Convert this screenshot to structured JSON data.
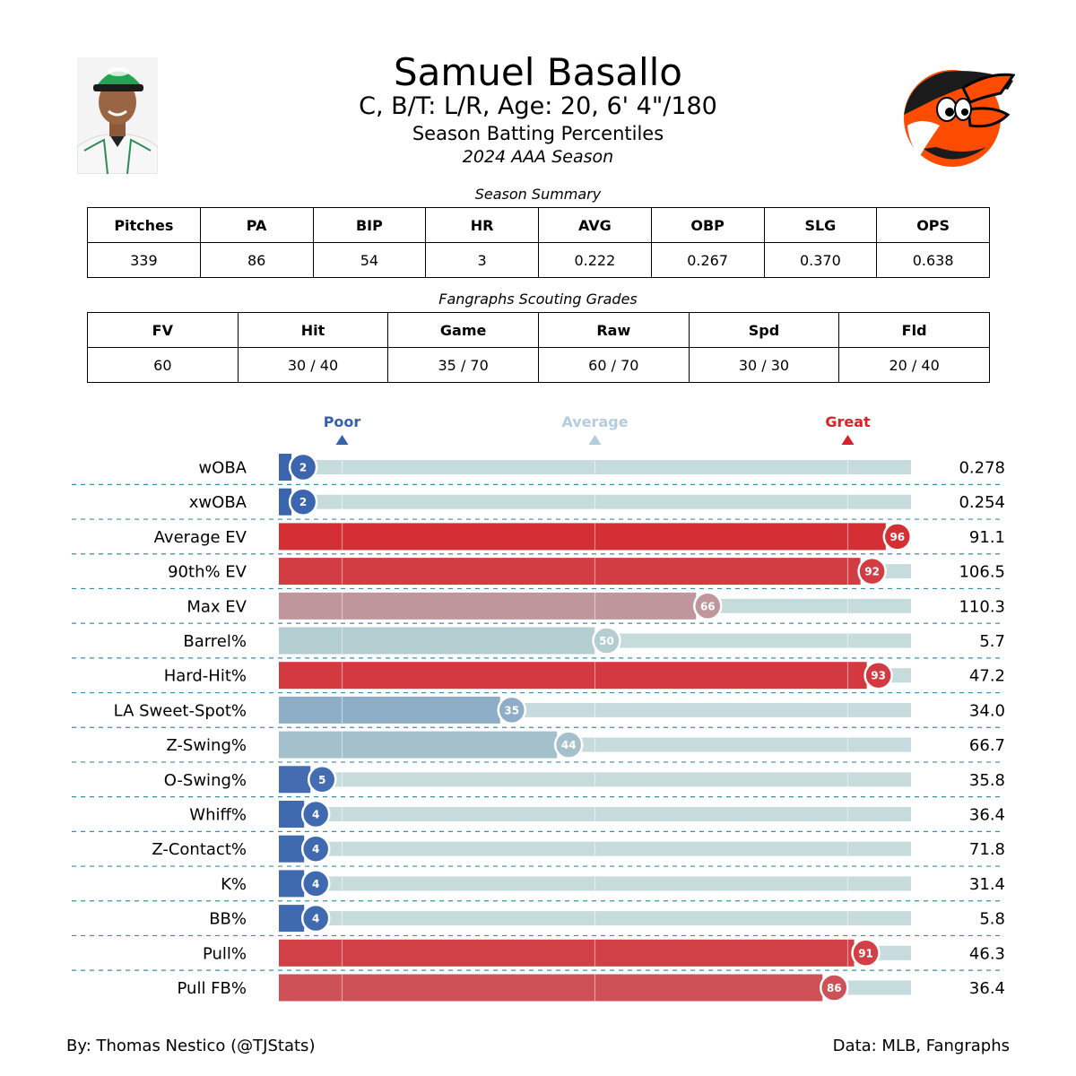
{
  "header": {
    "name": "Samuel Basallo",
    "bio": "C, B/T: L/R, Age: 20, 6' 4\"/180",
    "title": "Season Batting Percentiles",
    "season": "2024 AAA Season"
  },
  "images": {
    "headshot_icon": "player-headshot",
    "logo_icon": "orioles-bird-logo"
  },
  "summary": {
    "caption": "Season Summary",
    "headers": [
      "Pitches",
      "PA",
      "BIP",
      "HR",
      "AVG",
      "OBP",
      "SLG",
      "OPS"
    ],
    "values": [
      "339",
      "86",
      "54",
      "3",
      "0.222",
      "0.267",
      "0.370",
      "0.638"
    ]
  },
  "grades": {
    "caption": "Fangraphs Scouting Grades",
    "headers": [
      "FV",
      "Hit",
      "Game",
      "Raw",
      "Spd",
      "Fld"
    ],
    "values": [
      "60",
      "30 / 40",
      "35 / 70",
      "60 / 70",
      "30 / 30",
      "20 / 40"
    ]
  },
  "chart_data": {
    "type": "bar",
    "orientation": "horizontal",
    "title": "Season Batting Percentiles",
    "xlim": [
      0,
      100
    ],
    "reference_markers": [
      {
        "label": "Poor",
        "value": 10,
        "color": "#3661ad"
      },
      {
        "label": "Average",
        "value": 50,
        "color": "#b3cde0"
      },
      {
        "label": "Great",
        "value": 90,
        "color": "#d82129"
      }
    ],
    "categories": [
      "wOBA",
      "xwOBA",
      "Average EV",
      "90th% EV",
      "Max EV",
      "Barrel%",
      "Hard-Hit%",
      "LA Sweet-Spot%",
      "Z-Swing%",
      "O-Swing%",
      "Whiff%",
      "Z-Contact%",
      "K%",
      "BB%",
      "Pull%",
      "Pull FB%"
    ],
    "percentiles": [
      2,
      2,
      96,
      92,
      66,
      50,
      93,
      35,
      44,
      5,
      4,
      4,
      4,
      4,
      91,
      86
    ],
    "stat_values": [
      "0.278",
      "0.254",
      "91.1",
      "106.5",
      "110.3",
      "5.7",
      "47.2",
      "34.0",
      "66.7",
      "35.8",
      "36.4",
      "71.8",
      "31.4",
      "5.8",
      "46.3",
      "36.4"
    ],
    "background_color": "#c6dcdc",
    "divider_color": "#3b8fa8"
  },
  "footer": {
    "author": "By: Thomas Nestico (@TJStats)",
    "source": "Data: MLB, Fangraphs"
  }
}
